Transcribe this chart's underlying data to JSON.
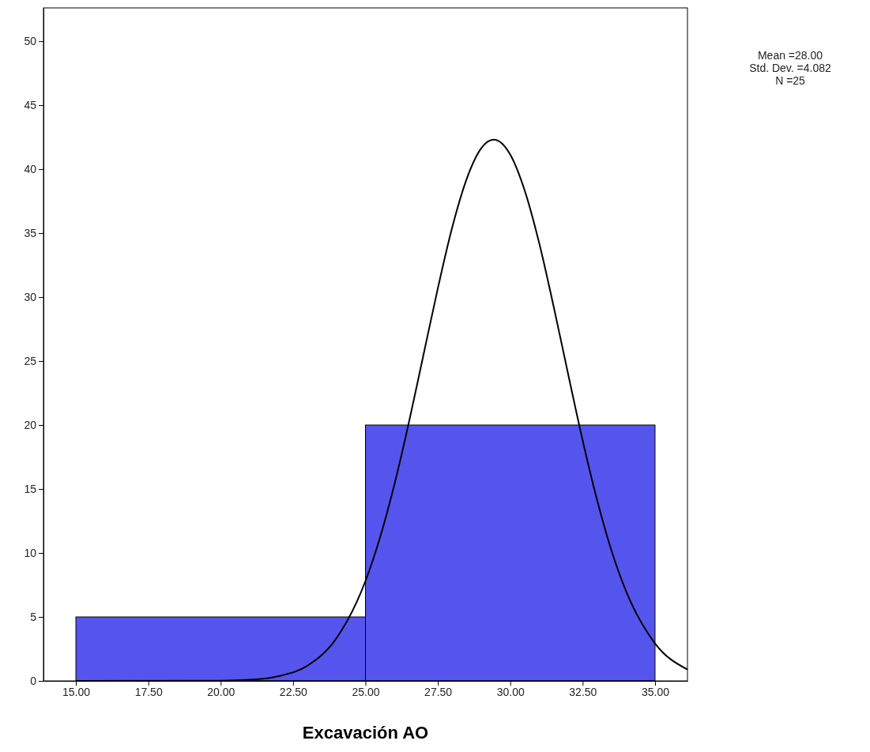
{
  "chart_data": {
    "type": "histogram",
    "xlabel": "Excavación AO",
    "annotations": [
      "Mean =28.00",
      "Std. Dev. =4.082",
      "N =25"
    ],
    "bins": [
      15,
      25,
      35
    ],
    "series": [
      {
        "color": "#5555ee",
        "values": [
          5,
          20
        ]
      },
      {
        "type": "line",
        "color": "#000000",
        "x": [
          15,
          20,
          21,
          22,
          23,
          24,
          25,
          25.5,
          26,
          26.5,
          27,
          27.5,
          28,
          28.5,
          29,
          29.43,
          30,
          30.5,
          31,
          31.5,
          32,
          32.5,
          33,
          33.5,
          34,
          35,
          36.12
        ],
        "values": [
          0,
          0.02,
          0.09,
          0.37,
          1.2,
          3.34,
          7.81,
          11.19,
          15.36,
          20.2,
          25.45,
          30.69,
          35.48,
          39.26,
          41.63,
          42.3,
          41.13,
          38.32,
          34.22,
          29.25,
          23.97,
          18.8,
          14.13,
          10.16,
          7.01,
          2.93,
          0.89
        ]
      }
    ],
    "xlim": [
      13.88,
      36.12
    ],
    "ylim": [
      0,
      52.6
    ],
    "xticks": [
      {
        "value": 15,
        "label": "15.00"
      },
      {
        "value": 17.5,
        "label": "17.50"
      },
      {
        "value": 20,
        "label": "20.00"
      },
      {
        "value": 22.5,
        "label": "22.50"
      },
      {
        "value": 25,
        "label": "25.00"
      },
      {
        "value": 27.5,
        "label": "27.50"
      },
      {
        "value": 30,
        "label": "30.00"
      },
      {
        "value": 32.5,
        "label": "32.50"
      },
      {
        "value": 35,
        "label": "35.00"
      }
    ],
    "yticks": [
      0,
      5,
      10,
      15,
      20,
      25,
      30,
      35,
      40,
      45,
      50
    ],
    "line_style": "solid",
    "marker": "none"
  }
}
